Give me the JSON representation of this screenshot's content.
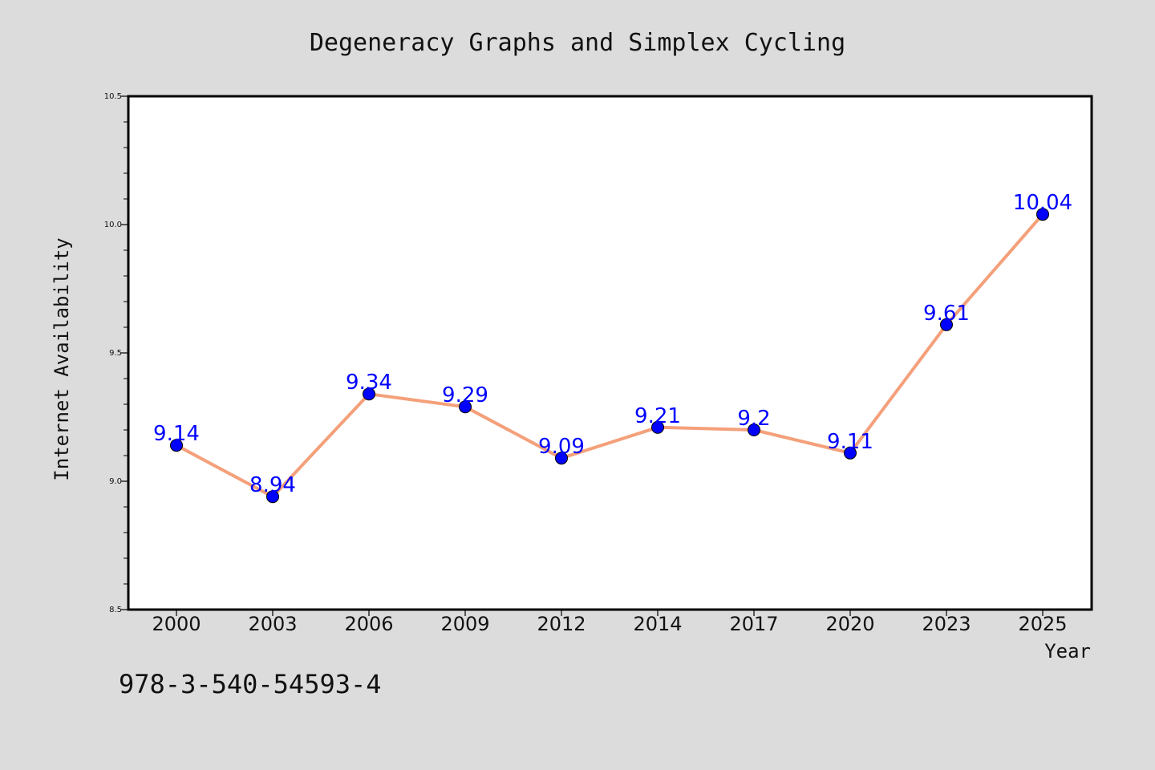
{
  "chart_data": {
    "type": "line",
    "title": "Degeneracy Graphs and Simplex Cycling",
    "xlabel": "Year",
    "ylabel": "Internet Availability",
    "categories": [
      "2000",
      "2003",
      "2006",
      "2009",
      "2012",
      "2014",
      "2017",
      "2020",
      "2023",
      "2025"
    ],
    "series": [
      {
        "values": [
          9.14,
          8.94,
          9.34,
          9.29,
          9.09,
          9.21,
          9.2,
          9.11,
          9.61,
          10.04
        ],
        "data_labels": [
          "9.14",
          "8.94",
          "9.34",
          "9.29",
          "9.09",
          "9.21",
          "9.2",
          "9.11",
          "9.61",
          "10.04"
        ]
      }
    ],
    "ylim": [
      8.5,
      10.5
    ],
    "yticks": [
      "8.5",
      "9.0",
      "9.5",
      "10.0",
      "10.5"
    ],
    "ytick_values": [
      8.5,
      9.0,
      9.5,
      10.0,
      10.5
    ],
    "grid": false,
    "legend": "none",
    "colors": {
      "line": "#f4a07a",
      "marker": "#0000ff",
      "data_label": "#0000ff",
      "background": "#dcdcdc",
      "plot_background": "#ffffff"
    }
  },
  "annotation": {
    "isbn": "978-3-540-54593-4"
  }
}
